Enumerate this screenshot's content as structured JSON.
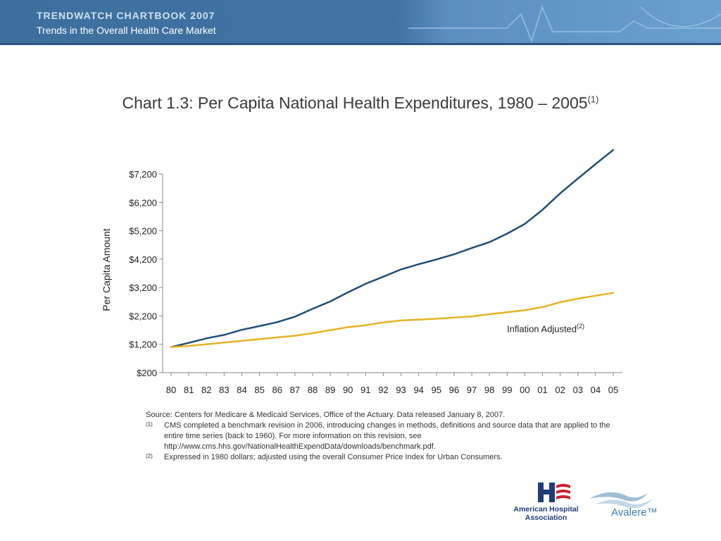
{
  "header": {
    "line1": "TRENDWATCH CHARTBOOK 2007",
    "line2": "Trends in the Overall Health Care Market"
  },
  "chart_data": {
    "type": "line",
    "title": "Chart 1.3: Per Capita National Health Expenditures, 1980 – 2005",
    "title_footnote": "(1)",
    "ylabel": "Per Capita Amount",
    "xlabel": "",
    "x": [
      "80",
      "81",
      "82",
      "83",
      "84",
      "85",
      "86",
      "87",
      "88",
      "89",
      "90",
      "91",
      "92",
      "93",
      "94",
      "95",
      "96",
      "97",
      "98",
      "99",
      "00",
      "01",
      "02",
      "03",
      "04",
      "05"
    ],
    "ylim": [
      200,
      7200
    ],
    "yticks": [
      200,
      1200,
      2200,
      3200,
      4200,
      5200,
      6200,
      7200
    ],
    "ytick_labels": [
      "$200",
      "$1,200",
      "$2,200",
      "$3,200",
      "$4,200",
      "$5,200",
      "$6,200",
      "$7,200"
    ],
    "grid": false,
    "series": [
      {
        "name": "",
        "color": "#1f4e79",
        "values": [
          1100,
          1250,
          1410,
          1530,
          1710,
          1840,
          1980,
          2170,
          2450,
          2710,
          3030,
          3330,
          3580,
          3840,
          4020,
          4190,
          4370,
          4590,
          4800,
          5100,
          5440,
          5940,
          6520,
          7040,
          7550,
          8050
        ]
      },
      {
        "name": "Inflation Adjusted",
        "name_footnote": "(2)",
        "color": "#e7b323",
        "values": [
          1100,
          1140,
          1200,
          1260,
          1320,
          1380,
          1440,
          1500,
          1590,
          1700,
          1800,
          1870,
          1970,
          2040,
          2070,
          2100,
          2140,
          2180,
          2260,
          2330,
          2400,
          2510,
          2680,
          2810,
          2910,
          3010
        ]
      }
    ]
  },
  "notes": {
    "source": "Source: Centers for Medicare & Medicaid Services, Office of the Actuary.  Data released January 8, 2007.",
    "n1_mark": "(1)",
    "n1_text": "CMS completed a benchmark revision in 2006, introducing changes in methods, definitions and source data that are applied to the entire time series (back to 1960).  For more information on this revision, see http://www.cms.hhs.gov/NationalHealthExpendData/downloads/benchmark.pdf.",
    "n2_mark": "(2)",
    "n2_text": "Expressed in 1980 dollars; adjusted using the overall Consumer Price Index for Urban Consumers."
  },
  "logos": {
    "aha": "American Hospital Association",
    "avalere": "Avalere™"
  },
  "colors": {
    "banner": "#3f73a4",
    "nominal_line": "#1f4e79",
    "inflation_line": "#e7b323"
  }
}
